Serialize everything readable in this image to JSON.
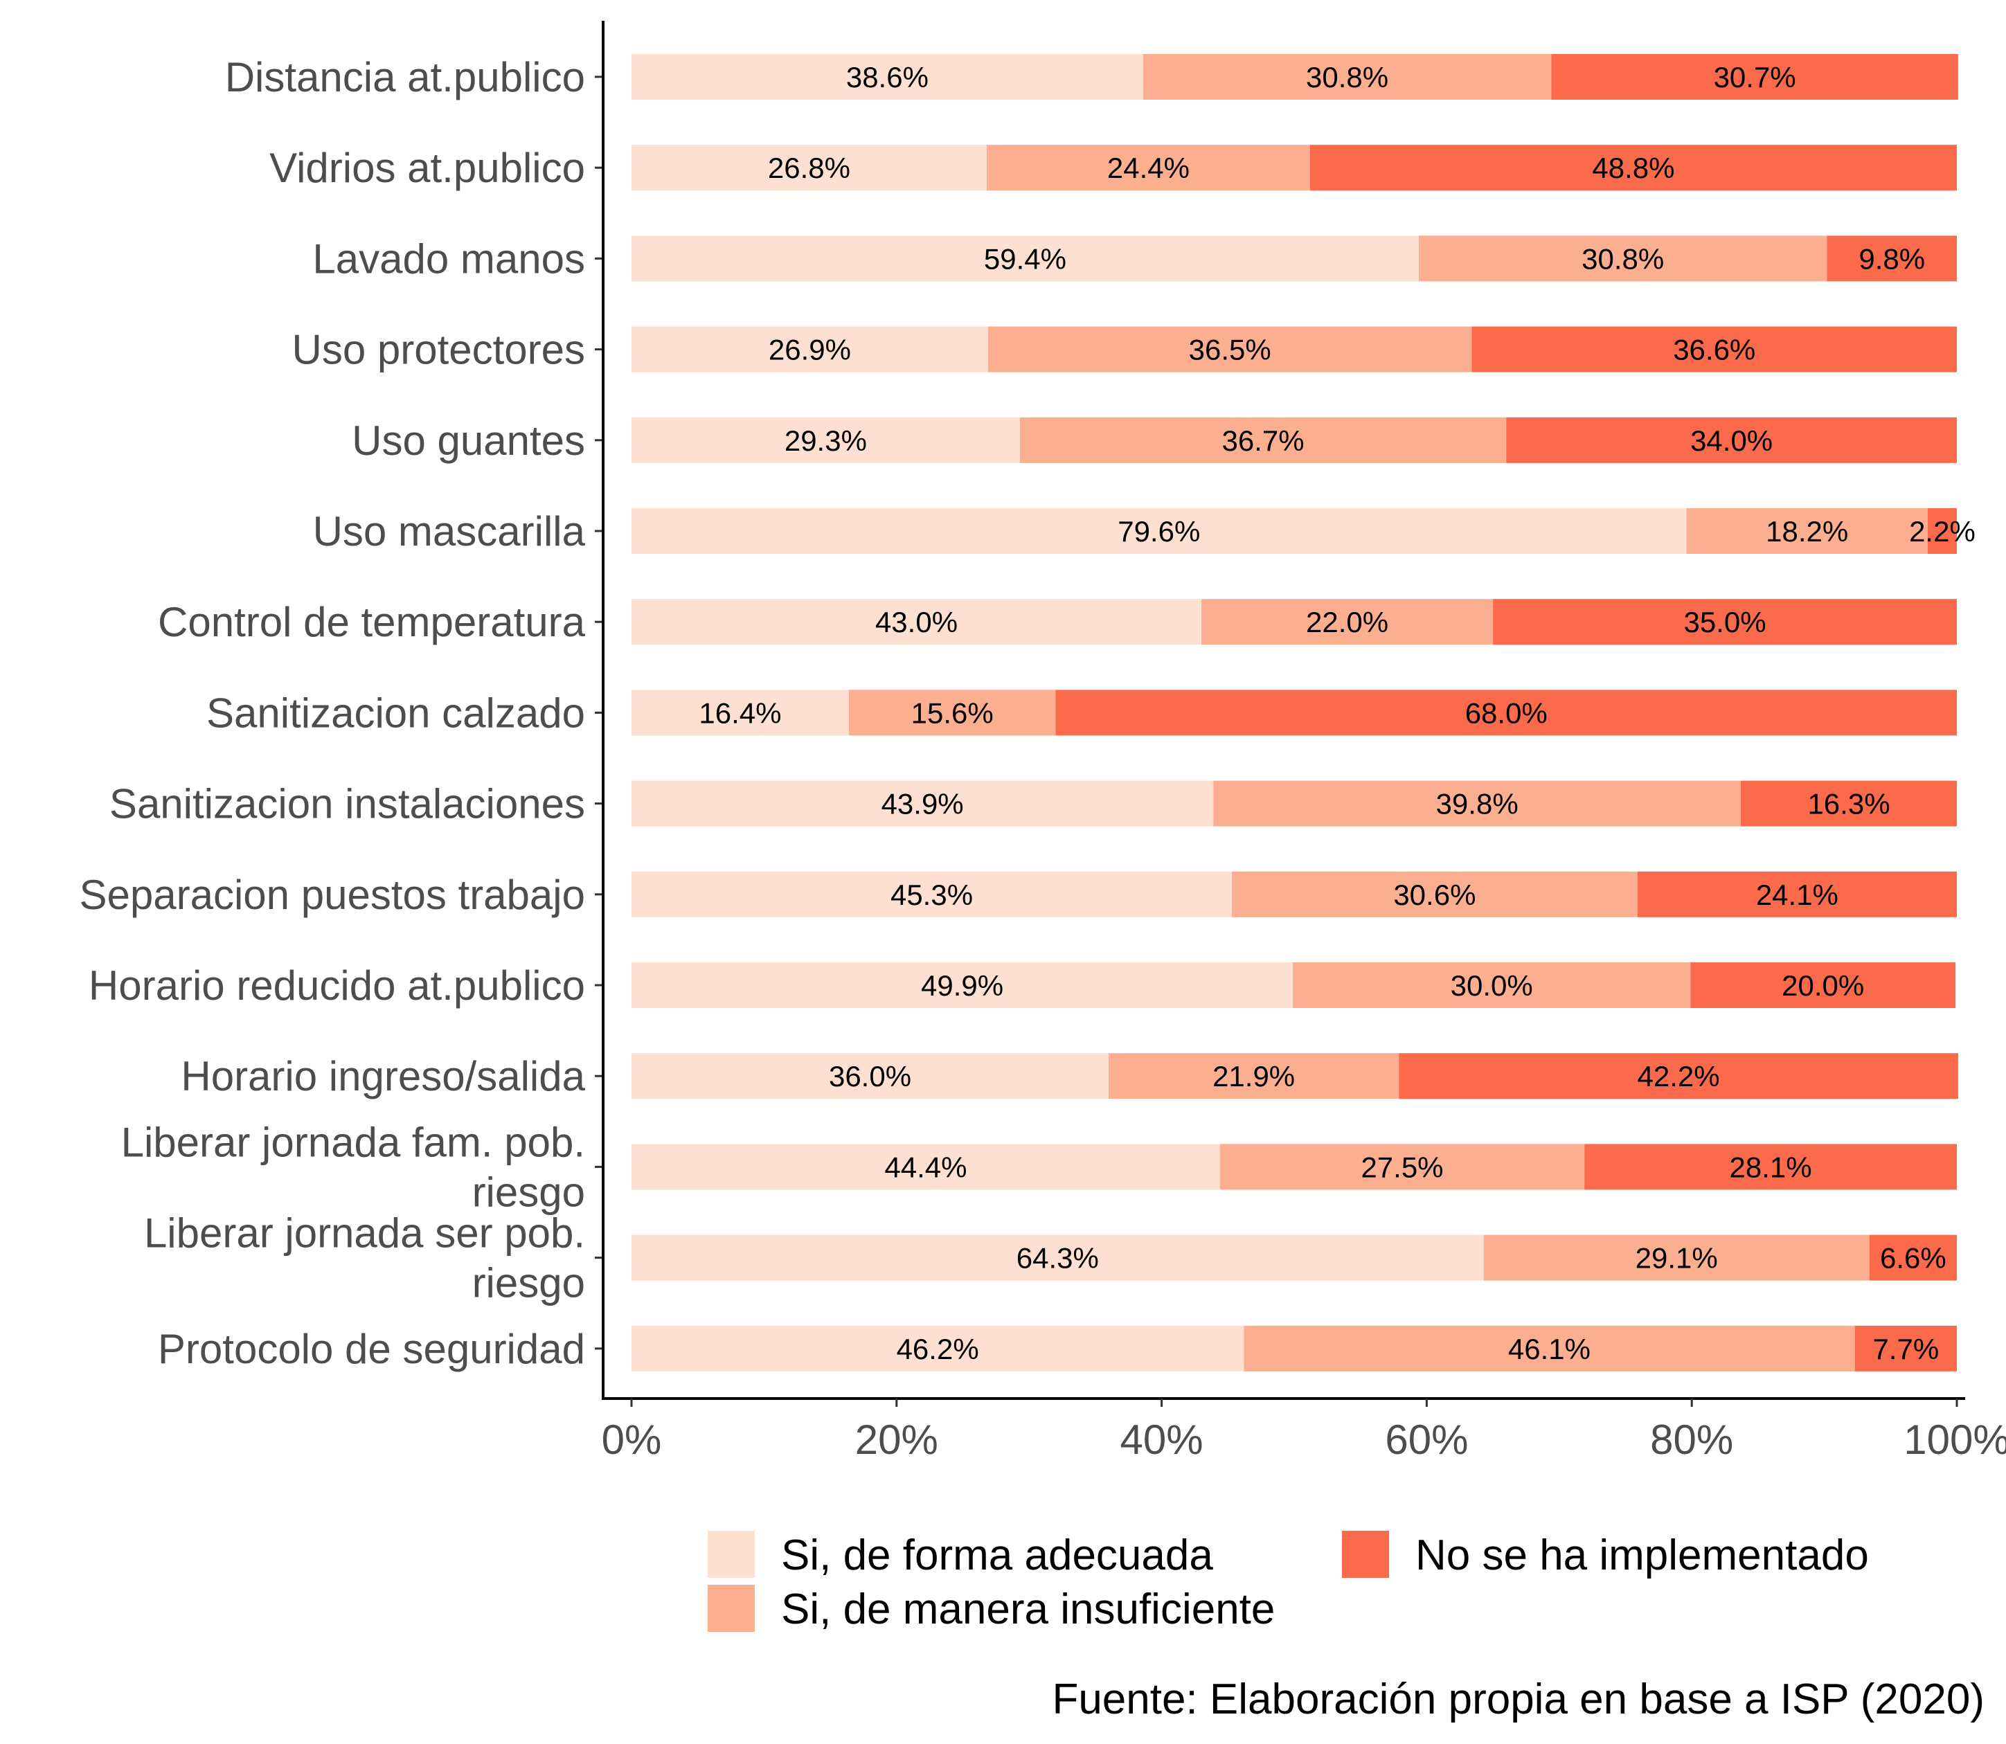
{
  "chart_data": {
    "type": "bar",
    "orientation": "horizontal",
    "stacked": "percent",
    "categories": [
      "Distancia at.publico",
      "Vidrios at.publico",
      "Lavado manos",
      "Uso protectores",
      "Uso guantes",
      "Uso mascarilla",
      "Control de temperatura",
      "Sanitizacion calzado",
      "Sanitizacion instalaciones",
      "Separacion puestos trabajo",
      "Horario reducido at.publico",
      "Horario ingreso/salida",
      "Liberar jornada fam. pob. riesgo",
      "Liberar jornada ser pob. riesgo",
      "Protocolo de seguridad"
    ],
    "series": [
      {
        "name": "Si, de forma adecuada",
        "color": "#fee0d2",
        "values": [
          38.6,
          26.8,
          59.4,
          26.9,
          29.3,
          79.6,
          43.0,
          16.4,
          43.9,
          45.3,
          49.9,
          36.0,
          44.4,
          64.3,
          46.2
        ],
        "labels": [
          "38.6%",
          "26.8%",
          "59.4%",
          "26.9%",
          "29.3%",
          "79.6%",
          "43.0%",
          "16.4%",
          "43.9%",
          "45.3%",
          "49.9%",
          "36.0%",
          "44.4%",
          "64.3%",
          "46.2%"
        ]
      },
      {
        "name": "Si, de manera insuficiente",
        "color": "#fcae91",
        "values": [
          30.8,
          24.4,
          30.8,
          36.5,
          36.7,
          18.2,
          22.0,
          15.6,
          39.8,
          30.6,
          30.0,
          21.9,
          27.5,
          29.1,
          46.1
        ],
        "labels": [
          "30.8%",
          "24.4%",
          "30.8%",
          "36.5%",
          "36.7%",
          "18.2%",
          "22.0%",
          "15.6%",
          "39.8%",
          "30.6%",
          "30.0%",
          "21.9%",
          "27.5%",
          "29.1%",
          "46.1%"
        ]
      },
      {
        "name": "No se ha implementado",
        "color": "#fb6a4a",
        "values": [
          30.7,
          48.8,
          9.8,
          36.6,
          34.0,
          2.2,
          35.0,
          68.0,
          16.3,
          24.1,
          20.0,
          42.2,
          28.1,
          6.6,
          7.7
        ],
        "labels": [
          "30.7%",
          "48.8%",
          "9.8%",
          "36.6%",
          "34.0%",
          "2.2%",
          "35.0%",
          "68.0%",
          "16.3%",
          "24.1%",
          "20.0%",
          "42.2%",
          "28.1%",
          "6.6%",
          "7.7%"
        ]
      }
    ],
    "x_ticks": [
      0,
      20,
      40,
      60,
      80,
      100
    ],
    "x_tick_labels": [
      "0%",
      "20%",
      "40%",
      "60%",
      "80%",
      "100%"
    ],
    "xlim": [
      0,
      100
    ],
    "legend_position": "bottom",
    "grid": false
  },
  "caption": "Fuente: Elaboración propia en base a ISP (2020)"
}
